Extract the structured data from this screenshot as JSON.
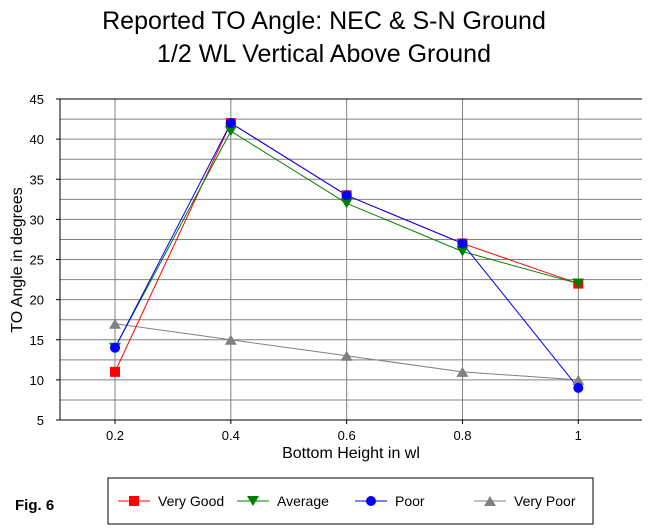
{
  "chart_data": {
    "type": "line",
    "title": [
      "Reported TO Angle: NEC & S-N Ground",
      "1/2 WL Vertical Above Ground"
    ],
    "xlabel": "Bottom Height in wl",
    "ylabel": "TO Angle in degrees",
    "x": [
      0.2,
      0.4,
      0.6,
      0.8,
      1
    ],
    "xtick_labels": [
      "0.2",
      "0.4",
      "0.6",
      "0.8",
      "1"
    ],
    "ytick_labels": [
      "5",
      "10",
      "15",
      "20",
      "25",
      "30",
      "35",
      "40",
      "45"
    ],
    "xlim": [
      0.105,
      1.11
    ],
    "ylim": [
      5,
      45
    ],
    "grid": true,
    "legend_position": "bottom",
    "series": [
      {
        "name": "Very Good",
        "color": "#ff0000",
        "marker": "square",
        "values": [
          11,
          42,
          33,
          27,
          22
        ]
      },
      {
        "name": "Average",
        "color": "#008000",
        "marker": "triangle-down",
        "values": [
          14,
          41,
          32,
          26,
          22
        ]
      },
      {
        "name": "Poor",
        "color": "#0000ff",
        "marker": "circle",
        "values": [
          14,
          42,
          33,
          27,
          9
        ]
      },
      {
        "name": "Very Poor",
        "color": "#808080",
        "marker": "triangle-up",
        "values": [
          17,
          15,
          13,
          11,
          10
        ]
      }
    ],
    "annotation": "Fig. 6"
  }
}
